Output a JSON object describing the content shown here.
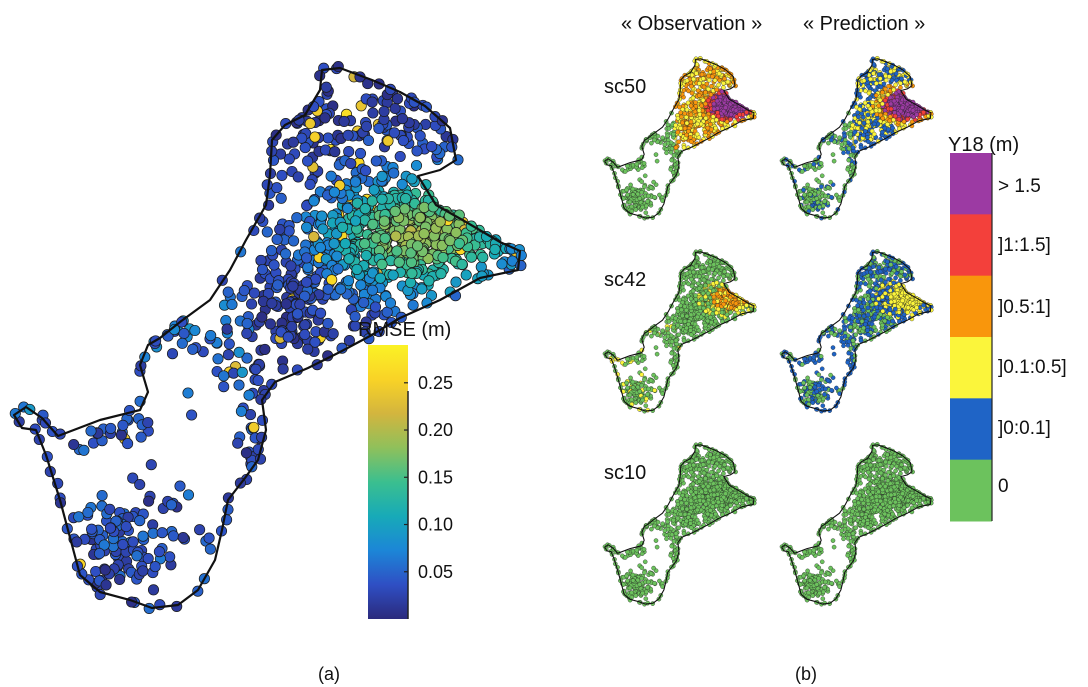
{
  "panel_a": {
    "label": "(a)",
    "colorbar": {
      "title": "RMSE (m)",
      "ticks": [
        "0.25",
        "0.20",
        "0.15",
        "0.10",
        "0.05"
      ],
      "tick_values": [
        0.25,
        0.2,
        0.15,
        0.1,
        0.05
      ],
      "range": [
        0.0,
        0.29
      ],
      "colors": [
        "#2b2a7c",
        "#2f4fc4",
        "#1c86d7",
        "#17aab8",
        "#3bbf8f",
        "#8fc05b",
        "#d3b53e",
        "#f9d326",
        "#fbf225"
      ]
    }
  },
  "panel_b": {
    "label": "(b)",
    "columns": [
      "« Observation »",
      "« Prediction »"
    ],
    "rows": [
      "sc50",
      "sc42",
      "sc10"
    ],
    "legend": {
      "title": "Y18 (m)",
      "categories": [
        {
          "label": "> 1.5",
          "color": "#9c3aa3"
        },
        {
          "label": "]1:1.5]",
          "color": "#f3403b"
        },
        {
          "label": "]0.5:1]",
          "color": "#f9960c"
        },
        {
          "label": "]0.1:0.5]",
          "color": "#fbf53b"
        },
        {
          "label": "]0:0.1]",
          "color": "#1f64c6"
        },
        {
          "label": "0",
          "color": "#6cc25d"
        }
      ]
    }
  }
}
